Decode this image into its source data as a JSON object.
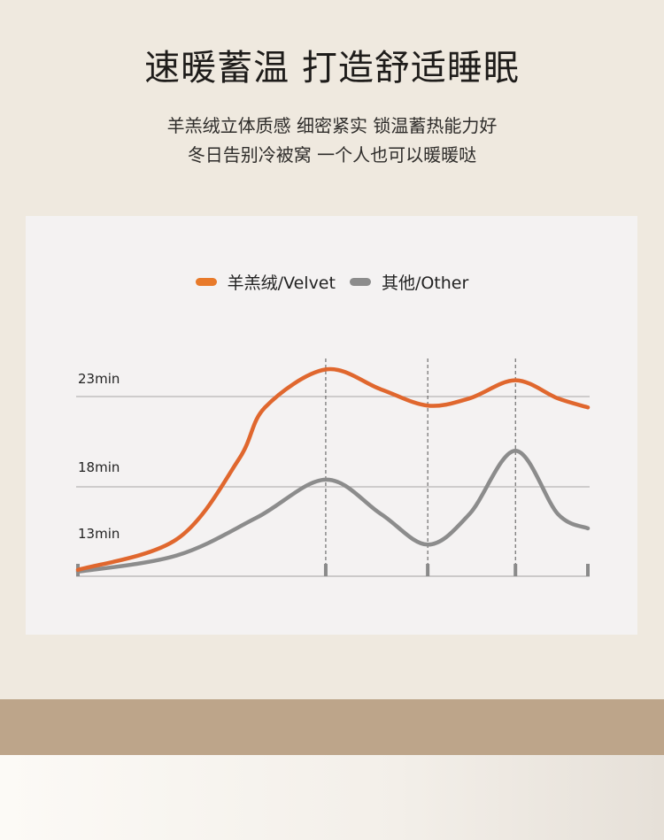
{
  "header": {
    "title": "速暖蓄温 打造舒适睡眠",
    "subtitle_line1": "羊羔绒立体质感 细密紧实 锁温蓄热能力好",
    "subtitle_line2": "冬日告别冷被窝 一个人也可以暖暖哒"
  },
  "chart_data": {
    "type": "line",
    "title": "",
    "xlabel": "",
    "ylabel": "",
    "legend_position": "top-center",
    "y_tick_labels": [
      "23min",
      "18min",
      "13min"
    ],
    "y_gridlines": [
      23,
      18
    ],
    "x_ticks": [
      0,
      48.6,
      68.6,
      85.8,
      100
    ],
    "x_dashed_markers": [
      48.6,
      68.6,
      85.8
    ],
    "xlim": [
      0,
      100
    ],
    "series": [
      {
        "name": "羊羔绒/Velvet",
        "color": "#e0672e",
        "x": [
          0,
          19.4,
          31.5,
          36.7,
          48.6,
          59.4,
          68.6,
          76.8,
          85.8,
          94.1,
          100
        ],
        "y": [
          13.4,
          15.1,
          19.5,
          22.4,
          24.5,
          23.4,
          22.5,
          22.9,
          23.9,
          22.9,
          22.4
        ]
      },
      {
        "name": "其他/Other",
        "color": "#8c8c8c",
        "x": [
          0,
          19.4,
          35.1,
          48.6,
          59.4,
          68.6,
          76.8,
          85.8,
          94.1,
          100
        ],
        "y": [
          13.3,
          14.2,
          16.3,
          18.4,
          16.5,
          14.8,
          16.5,
          20.0,
          16.5,
          15.7
        ]
      }
    ]
  }
}
